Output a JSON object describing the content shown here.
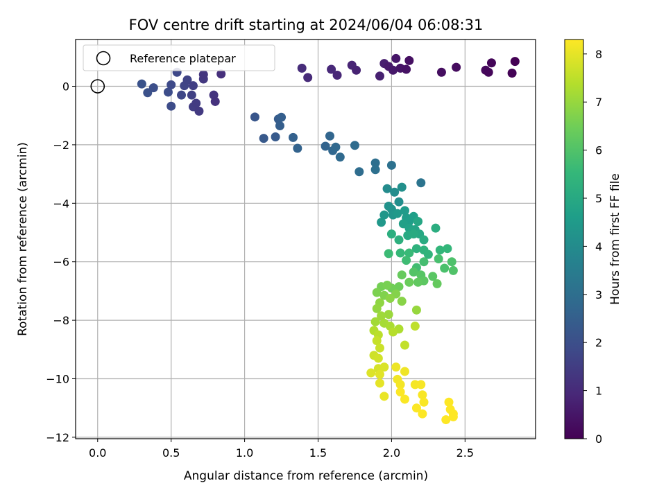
{
  "chart_data": {
    "type": "scatter",
    "title": "FOV centre drift starting at 2024/06/04 06:08:31",
    "xlabel": "Angular distance from reference (arcmin)",
    "ylabel": "Rotation from reference (arcmin)",
    "xlim": [
      -0.15,
      2.98
    ],
    "ylim": [
      -12.05,
      1.6
    ],
    "xticks": [
      "0.0",
      "0.5",
      "1.0",
      "1.5",
      "2.0",
      "2.5"
    ],
    "xtick_values": [
      0,
      0.5,
      1.0,
      1.5,
      2.0,
      2.5
    ],
    "yticks": [
      "−12",
      "−10",
      "−8",
      "−6",
      "−4",
      "−2",
      "0"
    ],
    "ytick_values": [
      -12,
      -10,
      -8,
      -6,
      -4,
      -2,
      0
    ],
    "grid": true,
    "colorbar": {
      "label": "Hours from first FF file",
      "colormap": "viridis",
      "range": [
        0,
        8.3
      ],
      "ticks": [
        "0",
        "1",
        "2",
        "3",
        "4",
        "5",
        "6",
        "7",
        "8"
      ],
      "tick_values": [
        0,
        1,
        2,
        3,
        4,
        5,
        6,
        7,
        8
      ]
    },
    "legend": {
      "placement": "top-left",
      "entries": [
        "Reference platepar"
      ]
    },
    "reference_point": {
      "x": 0,
      "y": 0
    },
    "points": [
      [
        1.39,
        0.62,
        1.05
      ],
      [
        1.43,
        0.3,
        1.0
      ],
      [
        1.59,
        0.58,
        0.95
      ],
      [
        1.63,
        0.38,
        0.9
      ],
      [
        1.73,
        0.72,
        0.85
      ],
      [
        1.76,
        0.55,
        0.8
      ],
      [
        1.92,
        0.35,
        0.75
      ],
      [
        1.95,
        0.78,
        0.7
      ],
      [
        1.98,
        0.68,
        0.6
      ],
      [
        2.01,
        0.55,
        0.55
      ],
      [
        2.03,
        0.95,
        0.5
      ],
      [
        2.06,
        0.62,
        0.45
      ],
      [
        2.1,
        0.58,
        0.4
      ],
      [
        2.12,
        0.88,
        0.35
      ],
      [
        2.34,
        0.48,
        0.3
      ],
      [
        2.44,
        0.65,
        0.25
      ],
      [
        2.64,
        0.55,
        0.2
      ],
      [
        2.66,
        0.48,
        0.15
      ],
      [
        2.68,
        0.8,
        0.1
      ],
      [
        2.82,
        0.45,
        0.05
      ],
      [
        2.84,
        0.85,
        0.0
      ],
      [
        0.3,
        0.08,
        2.1
      ],
      [
        0.34,
        -0.22,
        2.05
      ],
      [
        0.38,
        -0.05,
        2.0
      ],
      [
        0.48,
        -0.2,
        1.95
      ],
      [
        0.5,
        -0.68,
        1.9
      ],
      [
        0.5,
        0.05,
        1.85
      ],
      [
        0.54,
        0.48,
        1.8
      ],
      [
        0.57,
        -0.3,
        1.75
      ],
      [
        0.59,
        0.02,
        1.7
      ],
      [
        0.61,
        0.22,
        1.65
      ],
      [
        0.64,
        -0.3,
        1.6
      ],
      [
        0.65,
        0.02,
        1.55
      ],
      [
        0.65,
        -0.7,
        1.5
      ],
      [
        0.67,
        -0.58,
        1.45
      ],
      [
        0.69,
        -0.85,
        1.4
      ],
      [
        0.72,
        0.25,
        1.35
      ],
      [
        0.72,
        0.4,
        1.3
      ],
      [
        0.79,
        -0.3,
        1.25
      ],
      [
        0.8,
        -0.52,
        1.2
      ],
      [
        0.84,
        0.42,
        1.15
      ],
      [
        1.07,
        -1.05,
        2.2
      ],
      [
        1.13,
        -1.78,
        2.3
      ],
      [
        1.21,
        -1.73,
        2.35
      ],
      [
        1.23,
        -1.12,
        2.4
      ],
      [
        1.24,
        -1.35,
        2.45
      ],
      [
        1.25,
        -1.06,
        2.5
      ],
      [
        1.33,
        -1.75,
        2.55
      ],
      [
        1.36,
        -2.12,
        2.6
      ],
      [
        1.55,
        -2.05,
        2.65
      ],
      [
        1.58,
        -1.7,
        2.7
      ],
      [
        1.6,
        -2.2,
        2.75
      ],
      [
        1.62,
        -2.08,
        2.8
      ],
      [
        1.65,
        -2.42,
        2.85
      ],
      [
        1.75,
        -2.02,
        2.9
      ],
      [
        1.78,
        -2.92,
        2.95
      ],
      [
        1.89,
        -2.62,
        3.0
      ],
      [
        1.89,
        -2.85,
        3.05
      ],
      [
        2.0,
        -2.7,
        3.1
      ],
      [
        2.2,
        -3.3,
        3.2
      ],
      [
        1.97,
        -3.5,
        4.0
      ],
      [
        2.02,
        -3.62,
        4.05
      ],
      [
        2.05,
        -3.95,
        4.1
      ],
      [
        2.07,
        -3.45,
        4.15
      ],
      [
        1.98,
        -4.1,
        4.2
      ],
      [
        2.0,
        -4.2,
        4.25
      ],
      [
        2.01,
        -4.4,
        4.3
      ],
      [
        1.95,
        -4.4,
        4.35
      ],
      [
        1.93,
        -4.65,
        4.4
      ],
      [
        2.04,
        -4.35,
        4.45
      ],
      [
        2.09,
        -4.25,
        4.5
      ],
      [
        2.1,
        -4.5,
        4.55
      ],
      [
        2.12,
        -4.62,
        4.6
      ],
      [
        2.15,
        -4.45,
        4.65
      ],
      [
        2.08,
        -4.7,
        4.7
      ],
      [
        2.12,
        -4.85,
        4.75
      ],
      [
        2.16,
        -4.9,
        4.8
      ],
      [
        2.14,
        -4.95,
        4.85
      ],
      [
        2.18,
        -4.62,
        4.9
      ],
      [
        2.19,
        -5.05,
        4.95
      ],
      [
        2.11,
        -5.1,
        5.0
      ],
      [
        2.15,
        -5.05,
        5.05
      ],
      [
        2.22,
        -5.25,
        5.1
      ],
      [
        2.3,
        -4.85,
        5.15
      ],
      [
        2.0,
        -5.05,
        5.2
      ],
      [
        2.05,
        -5.25,
        5.25
      ],
      [
        2.17,
        -5.55,
        5.3
      ],
      [
        2.22,
        -5.6,
        5.35
      ],
      [
        2.25,
        -5.75,
        5.4
      ],
      [
        2.33,
        -5.6,
        5.45
      ],
      [
        2.38,
        -5.55,
        5.5
      ],
      [
        2.06,
        -5.7,
        5.55
      ],
      [
        2.12,
        -5.7,
        5.6
      ],
      [
        1.98,
        -5.72,
        5.65
      ],
      [
        2.1,
        -5.95,
        5.7
      ],
      [
        2.17,
        -6.2,
        5.75
      ],
      [
        2.22,
        -6.0,
        5.8
      ],
      [
        2.32,
        -5.9,
        5.85
      ],
      [
        2.36,
        -6.22,
        5.9
      ],
      [
        2.41,
        -6.0,
        5.95
      ],
      [
        2.42,
        -6.3,
        6.0
      ],
      [
        2.15,
        -6.35,
        6.05
      ],
      [
        2.2,
        -6.45,
        6.1
      ],
      [
        2.28,
        -6.5,
        6.15
      ],
      [
        2.22,
        -6.65,
        6.2
      ],
      [
        2.18,
        -6.7,
        6.25
      ],
      [
        2.31,
        -6.75,
        6.3
      ],
      [
        2.07,
        -6.45,
        6.35
      ],
      [
        2.12,
        -6.7,
        6.4
      ],
      [
        2.05,
        -6.85,
        6.45
      ],
      [
        2.0,
        -6.9,
        6.5
      ],
      [
        1.93,
        -6.85,
        6.55
      ],
      [
        1.97,
        -6.8,
        6.6
      ],
      [
        1.9,
        -7.05,
        6.65
      ],
      [
        1.95,
        -7.15,
        6.7
      ],
      [
        2.03,
        -7.1,
        6.75
      ],
      [
        2.07,
        -7.35,
        6.8
      ],
      [
        1.99,
        -7.25,
        6.85
      ],
      [
        1.92,
        -7.4,
        6.9
      ],
      [
        1.9,
        -7.6,
        6.95
      ],
      [
        2.17,
        -7.65,
        7.0
      ],
      [
        1.98,
        -7.8,
        7.05
      ],
      [
        1.93,
        -7.85,
        7.1
      ],
      [
        1.89,
        -8.05,
        7.15
      ],
      [
        1.95,
        -8.1,
        7.2
      ],
      [
        1.99,
        -8.2,
        7.25
      ],
      [
        2.05,
        -8.3,
        7.3
      ],
      [
        1.88,
        -8.35,
        7.35
      ],
      [
        2.01,
        -8.4,
        7.4
      ],
      [
        1.91,
        -8.5,
        7.45
      ],
      [
        2.16,
        -8.2,
        7.5
      ],
      [
        2.09,
        -8.85,
        7.55
      ],
      [
        1.9,
        -8.7,
        7.6
      ],
      [
        1.92,
        -8.95,
        7.65
      ],
      [
        1.88,
        -9.2,
        7.7
      ],
      [
        1.91,
        -9.3,
        7.75
      ],
      [
        1.91,
        -9.65,
        7.8
      ],
      [
        1.95,
        -9.6,
        7.85
      ],
      [
        1.86,
        -9.8,
        7.9
      ],
      [
        1.92,
        -9.85,
        7.95
      ],
      [
        1.92,
        -10.15,
        8.0
      ],
      [
        1.95,
        -10.6,
        8.05
      ],
      [
        2.03,
        -9.6,
        8.1
      ],
      [
        2.09,
        -9.75,
        8.12
      ],
      [
        2.04,
        -10.02,
        8.15
      ],
      [
        2.06,
        -10.2,
        8.18
      ],
      [
        2.16,
        -10.2,
        8.2
      ],
      [
        2.2,
        -10.2,
        8.22
      ],
      [
        2.21,
        -10.55,
        8.24
      ],
      [
        2.22,
        -10.8,
        8.25
      ],
      [
        2.09,
        -10.7,
        8.26
      ],
      [
        2.06,
        -10.45,
        8.27
      ],
      [
        2.17,
        -11.0,
        8.28
      ],
      [
        2.21,
        -11.2,
        8.29
      ],
      [
        2.39,
        -10.8,
        8.3
      ],
      [
        2.4,
        -11.05,
        8.3
      ],
      [
        2.42,
        -11.2,
        8.3
      ],
      [
        2.42,
        -11.3,
        8.3
      ],
      [
        2.37,
        -11.4,
        8.3
      ]
    ]
  }
}
